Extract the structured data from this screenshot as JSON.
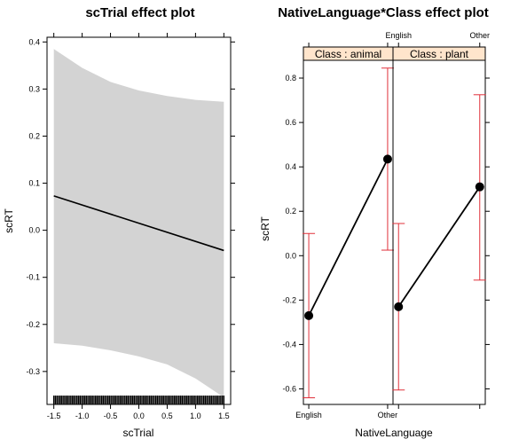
{
  "chart_data": [
    {
      "type": "line",
      "title": "scTrial effect plot",
      "xlabel": "scTrial",
      "ylabel": "scRT",
      "xlim": [
        -1.62,
        1.62
      ],
      "ylim": [
        -0.37,
        0.41
      ],
      "x_ticks": [
        "-1.5",
        "-1.0",
        "-0.5",
        "0.0",
        "0.5",
        "1.0",
        "1.5"
      ],
      "y_ticks": [
        "-0.3",
        "-0.2",
        "-0.1",
        "0.0",
        "0.1",
        "0.2",
        "0.3",
        "0.4"
      ],
      "fit": {
        "x": [
          -1.5,
          1.5
        ],
        "y": [
          0.073,
          -0.043
        ]
      },
      "band": {
        "x": [
          -1.5,
          -1.0,
          -0.5,
          0.0,
          0.5,
          1.0,
          1.5
        ],
        "upper": [
          0.385,
          0.345,
          0.315,
          0.297,
          0.285,
          0.277,
          0.273
        ],
        "lower": [
          -0.24,
          -0.245,
          -0.255,
          -0.268,
          -0.285,
          -0.315,
          -0.355
        ]
      },
      "grid": false,
      "band_color": "#d3d3d3",
      "line_color": "#000000",
      "rug": true
    },
    {
      "type": "line",
      "title": "NativeLanguage*Class effect plot",
      "xlabel": "NativeLanguage",
      "ylabel": "scRT",
      "ylim": [
        -0.67,
        0.88
      ],
      "categories": [
        "English",
        "Other"
      ],
      "y_ticks": [
        "-0.6",
        "-0.4",
        "-0.2",
        "0.0",
        "0.2",
        "0.4",
        "0.6",
        "0.8"
      ],
      "panels": [
        {
          "strip": "Class : animal",
          "values": [
            -0.27,
            0.435
          ],
          "lower": [
            -0.64,
            0.025
          ],
          "upper": [
            0.1,
            0.845
          ]
        },
        {
          "strip": "Class : plant",
          "values": [
            -0.23,
            0.31
          ],
          "lower": [
            -0.605,
            -0.11
          ],
          "upper": [
            0.145,
            0.725
          ]
        }
      ],
      "grid": false,
      "strip_color": "#ffe5cc",
      "errorbar_color": "#e0303a",
      "point_color": "#000000"
    }
  ]
}
